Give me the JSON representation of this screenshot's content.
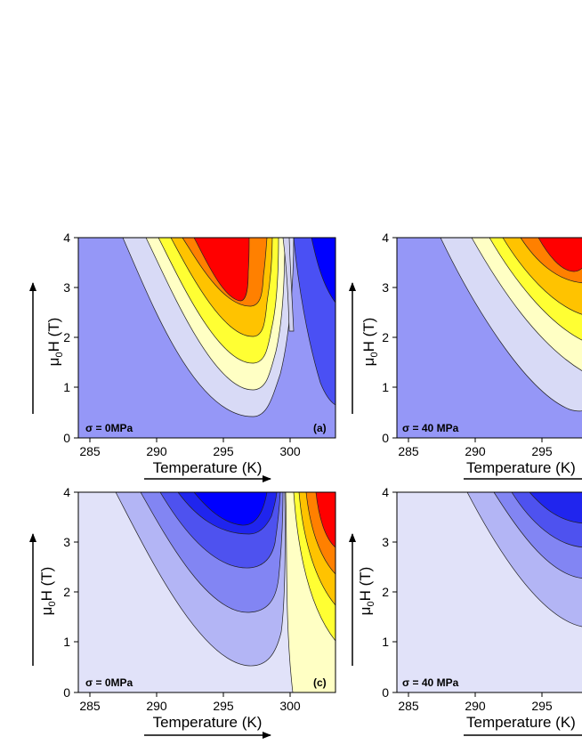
{
  "chart_data": [
    {
      "type": "contour",
      "panel_label": "(a)",
      "condition": "σ = 0MPa",
      "xlabel": "Temperature (K)",
      "ylabel": "μ0H (T)",
      "xlim": [
        285,
        304.3
      ],
      "ylim": [
        0,
        4
      ],
      "xticks": [
        "285",
        "290",
        "295",
        "300"
      ],
      "yticks": [
        "0",
        "1",
        "2",
        "3",
        "4"
      ],
      "colors": [
        "#9597f7",
        "#d8daf6",
        "#ffffc4",
        "#ffff33",
        "#ffc300",
        "#ff8000",
        "#ff0000",
        "#d0d0ef",
        "#4a50f4",
        "#0000ff"
      ]
    },
    {
      "type": "contour",
      "panel_label": "",
      "condition": "σ = 40 MPa",
      "xlabel": "Temperature (K)",
      "ylabel": "μ0H (T)",
      "xlim": [
        285,
        304.3
      ],
      "ylim": [
        0,
        4
      ],
      "xticks": [
        "285",
        "290",
        "295"
      ],
      "yticks": [
        "0",
        "1",
        "2",
        "3",
        "4"
      ],
      "colors": [
        "#9597f7",
        "#d8daf6",
        "#ffffc4",
        "#ffff33",
        "#ffc300",
        "#ff8000",
        "#ff0000"
      ]
    },
    {
      "type": "contour",
      "panel_label": "(c)",
      "condition": "σ = 0MPa",
      "xlabel": "Temperature (K)",
      "ylabel": "μ0H (T)",
      "xlim": [
        285,
        304.3
      ],
      "ylim": [
        0,
        4
      ],
      "xticks": [
        "285",
        "290",
        "295",
        "300"
      ],
      "yticks": [
        "0",
        "1",
        "2",
        "3",
        "4"
      ],
      "colors": [
        "#e1e2f9",
        "#b3b5f5",
        "#8285f3",
        "#4e52ef",
        "#2025ee",
        "#0000ff",
        "#ffffc4",
        "#ffff33",
        "#ffc300",
        "#ff8000",
        "#ff0000"
      ]
    },
    {
      "type": "contour",
      "panel_label": "",
      "condition": "σ = 40 MPa",
      "xlabel": "Temperature (K)",
      "ylabel": "μ0H (T)",
      "xlim": [
        285,
        304.3
      ],
      "ylim": [
        0,
        4
      ],
      "xticks": [
        "285",
        "290",
        "295"
      ],
      "yticks": [
        "0",
        "1",
        "2",
        "3",
        "4"
      ],
      "colors": [
        "#e1e2f9",
        "#b3b5f5",
        "#8285f3",
        "#4e52ef",
        "#2025ee"
      ]
    }
  ]
}
